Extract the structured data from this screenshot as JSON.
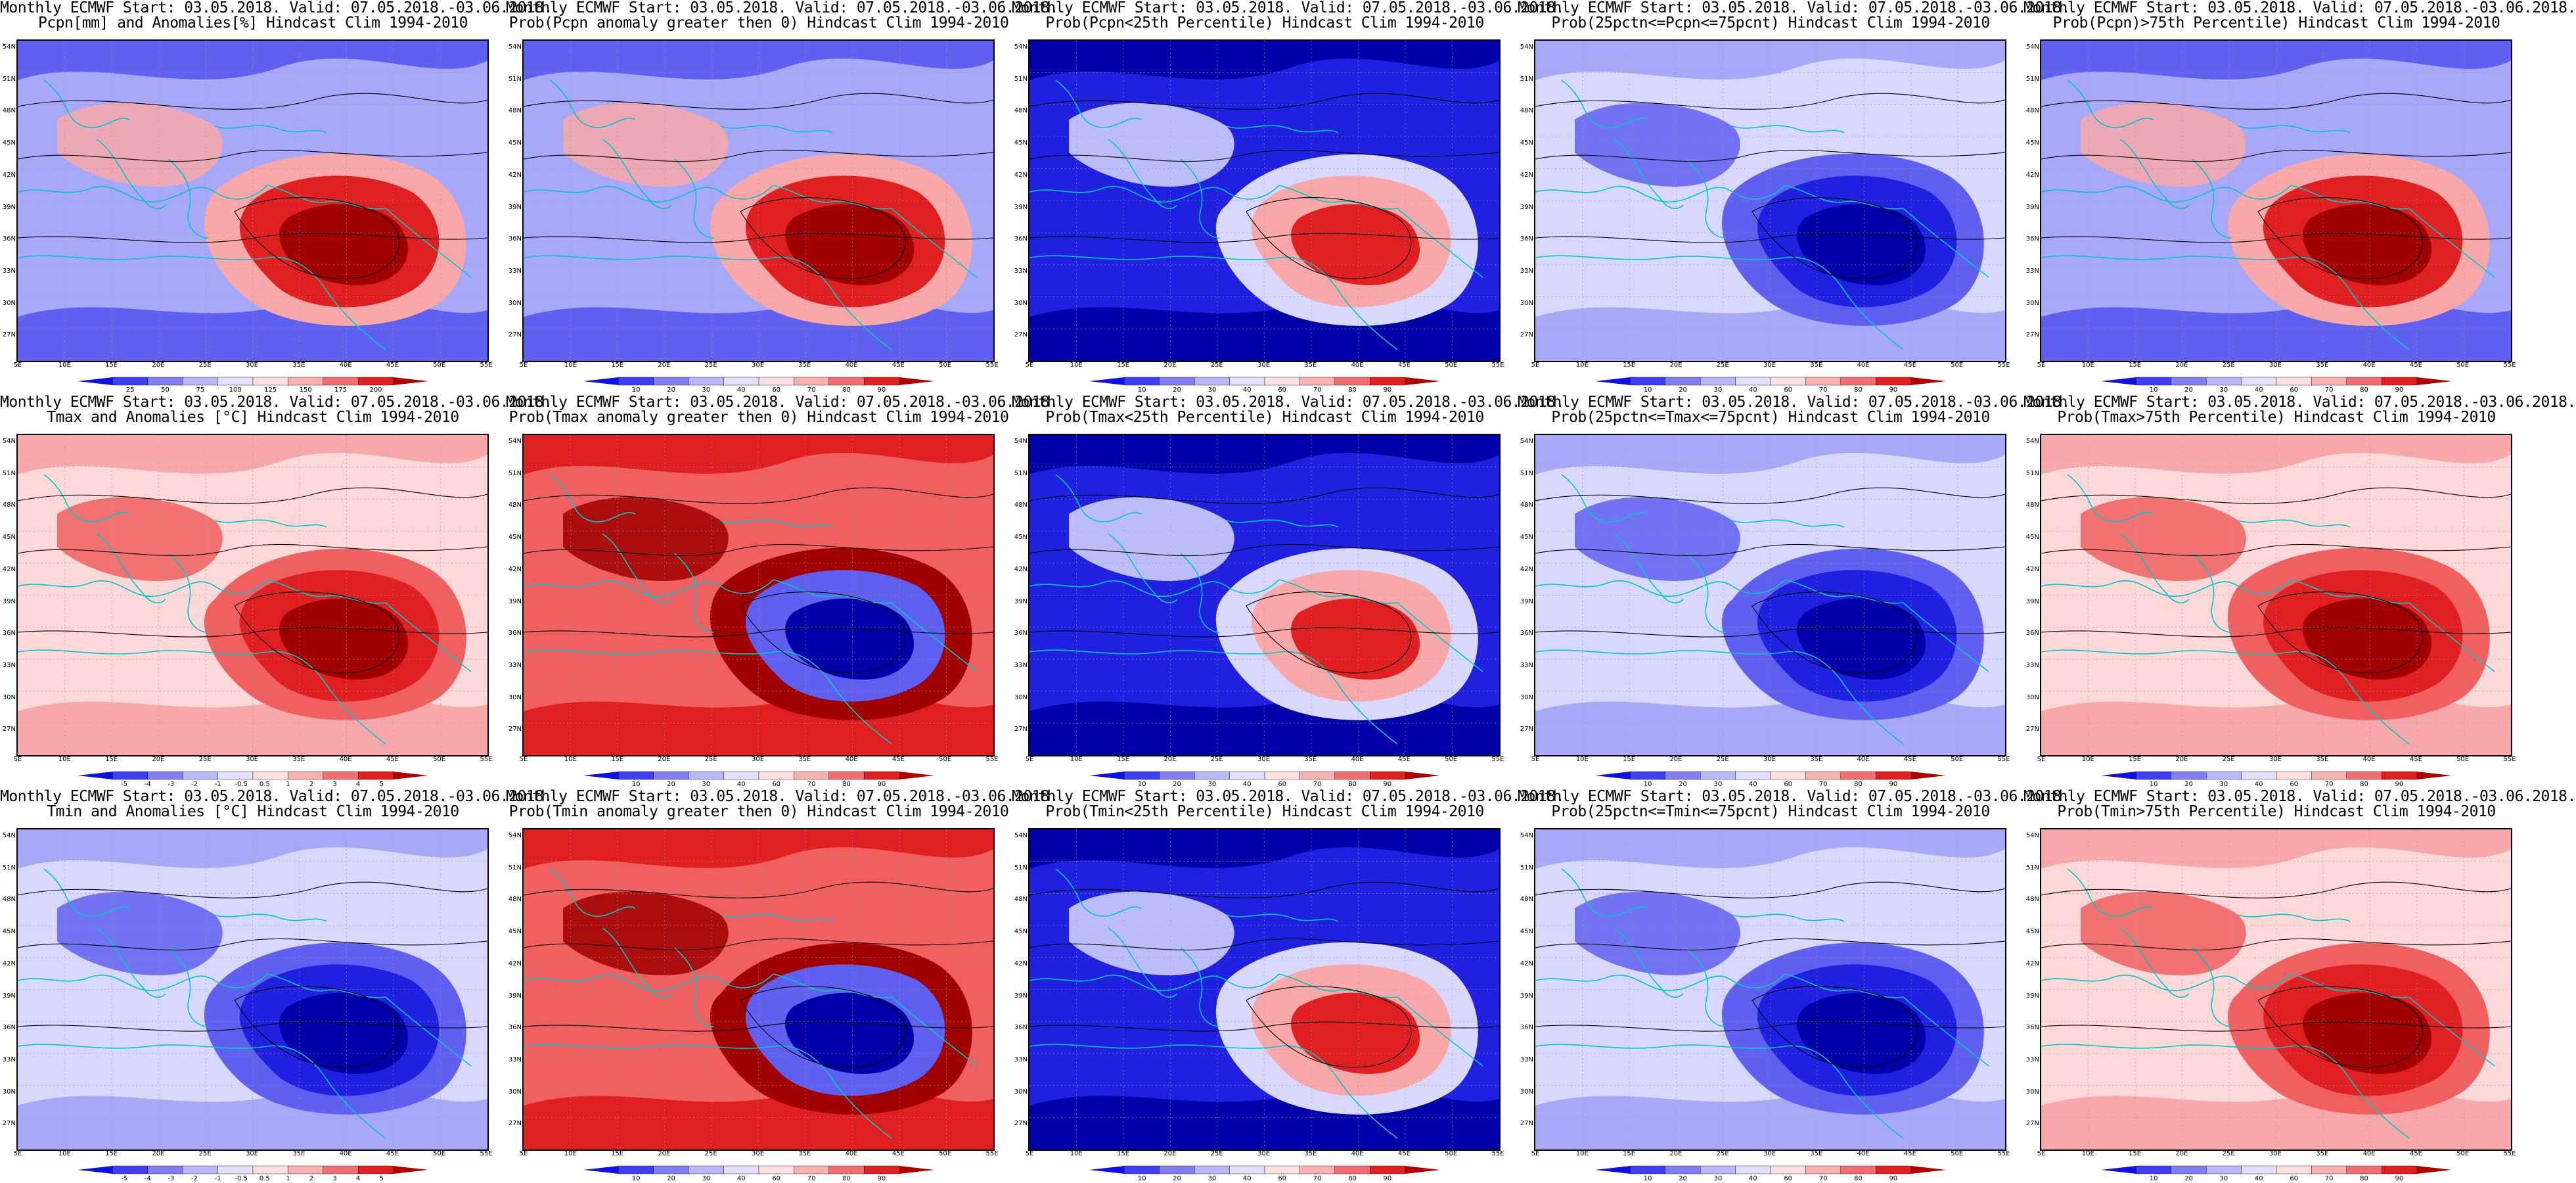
{
  "panels": [
    {
      "id": "pcpn-anom",
      "line1": "Monthly ECMWF Start: 03.05.2018. Valid: 07.05.2018.-03.06.2018.",
      "line2": "Pcpn[mm] and Anomalies[%] Hindcast Clim 1994-2010",
      "scheme": "pcpn",
      "cbar": [
        "25",
        "50",
        "75",
        "100",
        "125",
        "150",
        "175",
        "200"
      ]
    },
    {
      "id": "prob-pcpn-gt0",
      "line1": "Monthly ECMWF Start: 03.05.2018. Valid: 07.05.2018.-03.06.2018.",
      "line2": "Prob(Pcpn anomaly greater then 0) Hindcast Clim 1994-2010",
      "scheme": "pcpn",
      "cbar": [
        "10",
        "20",
        "30",
        "40",
        "60",
        "70",
        "80",
        "90"
      ]
    },
    {
      "id": "prob-pcpn-lt25",
      "line1": "Monthly ECMWF Start: 03.05.2018. Valid: 07.05.2018.-03.06.2018.",
      "line2": "Prob(Pcpn<25th Percentile) Hindcast Clim 1994-2010",
      "scheme": "blue",
      "cbar": [
        "10",
        "20",
        "30",
        "40",
        "60",
        "70",
        "80",
        "90"
      ]
    },
    {
      "id": "prob-pcpn-mid",
      "line1": "Monthly ECMWF Start: 03.05.2018. Valid: 07.05.2018.-03.06.2018.",
      "line2": "Prob(25pctn<=Pcpn<=75pcnt) Hindcast Clim 1994-2010",
      "scheme": "light",
      "cbar": [
        "10",
        "20",
        "30",
        "40",
        "60",
        "70",
        "80",
        "90"
      ]
    },
    {
      "id": "prob-pcpn-gt75",
      "line1": "Monthly ECMWF Start: 03.05.2018. Valid: 07.05.2018.-03.06.2018.",
      "line2": "Prob(Pcpn)>75th Percentile) Hindcast Clim 1994-2010",
      "scheme": "pcpn",
      "cbar": [
        "10",
        "20",
        "30",
        "40",
        "60",
        "70",
        "80",
        "90"
      ]
    },
    {
      "id": "tmax-anom",
      "line1": "Monthly ECMWF Start: 03.05.2018. Valid: 07.05.2018.-03.06.2018.",
      "line2": "Tmax and Anomalies [°C] Hindcast Clim 1994-2010",
      "scheme": "warm",
      "cbar": [
        "-5",
        "-4",
        "-3",
        "-2",
        "-1",
        "-0.5",
        "0.5",
        "1",
        "2",
        "3",
        "4",
        "5"
      ]
    },
    {
      "id": "prob-tmax-gt0",
      "line1": "Monthly ECMWF Start: 03.05.2018. Valid: 07.05.2018.-03.06.2018.",
      "line2": "Prob(Tmax anomaly greater then 0) Hindcast Clim 1994-2010",
      "scheme": "hot",
      "cbar": [
        "10",
        "20",
        "30",
        "40",
        "60",
        "70",
        "80",
        "90"
      ]
    },
    {
      "id": "prob-tmax-lt25",
      "line1": "Monthly ECMWF Start: 03.05.2018. Valid: 07.05.2018.-03.06.2018.",
      "line2": "Prob(Tmax<25th Percentile) Hindcast Clim 1994-2010",
      "scheme": "blue",
      "cbar": [
        "10",
        "20",
        "30",
        "40",
        "60",
        "70",
        "80",
        "90"
      ]
    },
    {
      "id": "prob-tmax-mid",
      "line1": "Monthly ECMWF Start: 03.05.2018. Valid: 07.05.2018.-03.06.2018.",
      "line2": "Prob(25pctn<=Tmax<=75pcnt) Hindcast Clim 1994-2010",
      "scheme": "light",
      "cbar": [
        "10",
        "20",
        "30",
        "40",
        "60",
        "70",
        "80",
        "90"
      ]
    },
    {
      "id": "prob-tmax-gt75",
      "line1": "Monthly ECMWF Start: 03.05.2018. Valid: 07.05.2018.-03.06.2018.",
      "line2": "Prob(Tmax>75th Percentile) Hindcast Clim 1994-2010",
      "scheme": "warm",
      "cbar": [
        "10",
        "20",
        "30",
        "40",
        "60",
        "70",
        "80",
        "90"
      ]
    },
    {
      "id": "tmin-anom",
      "line1": "Monthly ECMWF Start: 03.05.2018. Valid: 07.05.2018.-03.06.2018.",
      "line2": "Tmin and Anomalies [°C] Hindcast Clim 1994-2010",
      "scheme": "light",
      "cbar": [
        "-5",
        "-4",
        "-3",
        "-2",
        "-1",
        "-0.5",
        "0.5",
        "1",
        "2",
        "3",
        "4",
        "5"
      ]
    },
    {
      "id": "prob-tmin-gt0",
      "line1": "Monthly ECMWF Start: 03.05.2018. Valid: 07.05.2018.-03.06.2018.",
      "line2": "Prob(Tmin anomaly greater then 0) Hindcast Clim 1994-2010",
      "scheme": "hot",
      "cbar": [
        "10",
        "20",
        "30",
        "40",
        "60",
        "70",
        "80",
        "90"
      ]
    },
    {
      "id": "prob-tmin-lt25",
      "line1": "Monthly ECMWF Start: 03.05.2018. Valid: 07.05.2018.-03.06.2018.",
      "line2": "Prob(Tmin<25th Percentile) Hindcast Clim 1994-2010",
      "scheme": "blue",
      "cbar": [
        "10",
        "20",
        "30",
        "40",
        "60",
        "70",
        "80",
        "90"
      ]
    },
    {
      "id": "prob-tmin-mid",
      "line1": "Monthly ECMWF Start: 03.05.2018. Valid: 07.05.2018.-03.06.2018.",
      "line2": "Prob(25pctn<=Tmin<=75pcnt) Hindcast Clim 1994-2010",
      "scheme": "light",
      "cbar": [
        "10",
        "20",
        "30",
        "40",
        "60",
        "70",
        "80",
        "90"
      ]
    },
    {
      "id": "prob-tmin-gt75",
      "line1": "Monthly ECMWF Start: 03.05.2018. Valid: 07.05.2018.-03.06.2018.",
      "line2": "Prob(Tmin>75th Percentile) Hindcast Clim 1994-2010",
      "scheme": "warm",
      "cbar": [
        "10",
        "20",
        "30",
        "40",
        "60",
        "70",
        "80",
        "90"
      ]
    }
  ],
  "lat_labels": [
    "54N",
    "51N",
    "48N",
    "45N",
    "42N",
    "39N",
    "36N",
    "33N",
    "30N",
    "27N"
  ],
  "lon_labels": [
    "5E",
    "10E",
    "15E",
    "20E",
    "25E",
    "30E",
    "35E",
    "40E",
    "45E",
    "50E",
    "55E"
  ],
  "colors": {
    "deep_red": "#a00000",
    "red": "#e02020",
    "mid_red": "#f06060",
    "light_red": "#f8a8a8",
    "pale_red": "#fcd8d8",
    "white": "#ffffff",
    "pale_blue": "#d8d8fc",
    "light_blue": "#a8a8f8",
    "mid_blue": "#6060f0",
    "blue": "#2020e0",
    "deep_blue": "#0000a8",
    "coast": "#00c8c8",
    "contour": "#000000"
  },
  "colorbar_colors": [
    "#1010e8",
    "#4040f0",
    "#8080f4",
    "#b8b8f8",
    "#e0e0fc",
    "#fce0e0",
    "#f8b0b0",
    "#f07070",
    "#e02020",
    "#b00000"
  ]
}
